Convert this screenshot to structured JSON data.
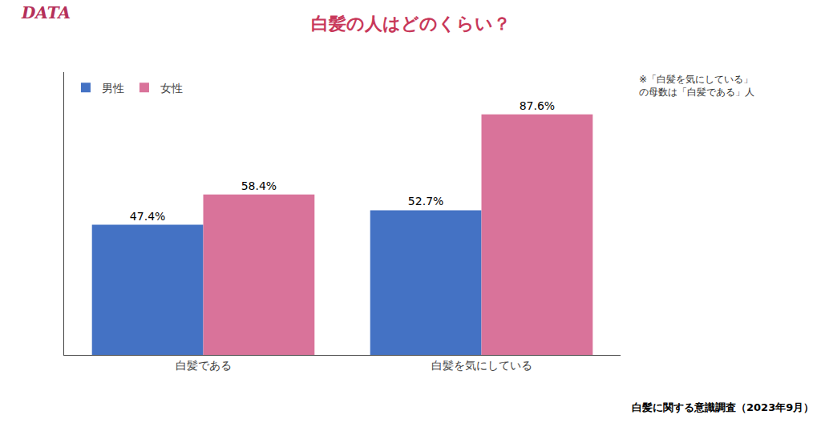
{
  "chart_data": {
    "type": "bar",
    "title": "白髪の人はどのくらい？",
    "categories": [
      "白髪である",
      "白髪を気にしている"
    ],
    "series": [
      {
        "name": "男性",
        "color": "#4472C4",
        "values": [
          47.4,
          52.7
        ],
        "value_labels": [
          "47.4%",
          "52.7%"
        ]
      },
      {
        "name": "女性",
        "color": "#D9739A",
        "values": [
          58.4,
          87.6
        ],
        "value_labels": [
          "58.4%",
          "87.6%"
        ]
      }
    ],
    "ylim": [
      0,
      103
    ],
    "data_labels": true,
    "tick_labels": "x",
    "grid": false,
    "legend": "upper left",
    "annotations": [
      "DATA",
      "※「白髪を気にしている」",
      "の母数は「白髪である」人",
      "白髪に関する意識調査（2023年9月）"
    ]
  }
}
